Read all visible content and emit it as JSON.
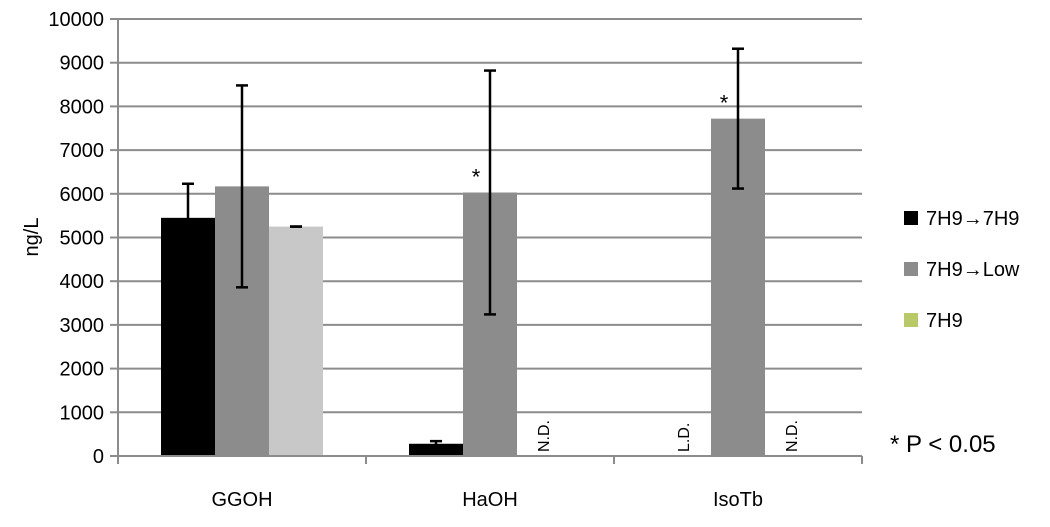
{
  "chart_data": {
    "type": "bar",
    "ylabel": "ng/L",
    "ylim": [
      0,
      10000
    ],
    "yticks": [
      0,
      1000,
      2000,
      3000,
      4000,
      5000,
      6000,
      7000,
      8000,
      9000,
      10000
    ],
    "grid": true,
    "legend_position": "right",
    "categories": [
      "GGOH",
      "HaOH",
      "IsoTb"
    ],
    "series": [
      {
        "name": "7H9→7H9",
        "color": "#000000",
        "values": [
          5450,
          280,
          null
        ],
        "errors": [
          780,
          60,
          null
        ]
      },
      {
        "name": "7H9→Low",
        "color": "#8c8c8c",
        "values": [
          6170,
          6030,
          7720
        ],
        "errors": [
          2310,
          2790,
          1600
        ]
      },
      {
        "name": "7H9",
        "color": "#c8c8c8",
        "legend_color": "#b9c96a",
        "values": [
          5250,
          null,
          null
        ],
        "errors": [
          0,
          null,
          null
        ]
      }
    ],
    "bar_labels": [
      {
        "category": 1,
        "series": 2,
        "text": "N.D."
      },
      {
        "category": 2,
        "series": 0,
        "text": "L.D."
      },
      {
        "category": 2,
        "series": 2,
        "text": "N.D."
      }
    ],
    "significance": [
      {
        "category": 1,
        "series": 1,
        "text": "*"
      },
      {
        "category": 2,
        "series": 1,
        "text": "*"
      }
    ],
    "note": "* P < 0.05"
  }
}
